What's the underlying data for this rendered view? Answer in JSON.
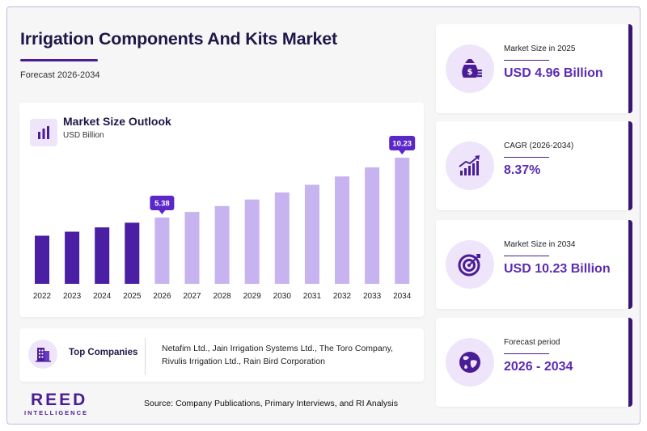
{
  "header": {
    "title": "Irrigation Components And Kits Market",
    "subtitle": "Forecast 2026-2034"
  },
  "chart_card": {
    "title": "Market Size Outlook",
    "unit": "USD Billion",
    "icon": "bar-chart-icon"
  },
  "chart_data": {
    "type": "bar",
    "title": "Market Size Outlook",
    "ylabel": "USD Billion",
    "categories": [
      "2022",
      "2023",
      "2024",
      "2025",
      "2026",
      "2027",
      "2028",
      "2029",
      "2030",
      "2031",
      "2032",
      "2033",
      "2034"
    ],
    "values": [
      3.9,
      4.23,
      4.58,
      4.96,
      5.38,
      5.83,
      6.31,
      6.84,
      7.41,
      8.03,
      8.71,
      9.44,
      10.23
    ],
    "data_labels": [
      {
        "category": "2026",
        "text": "5.38"
      },
      {
        "category": "2034",
        "text": "10.23"
      }
    ],
    "colors": {
      "historical": "#4a1fa3",
      "forecast": "#c7b3f0",
      "label_bg": "#5a27c9"
    },
    "ylim": [
      0,
      10.23
    ],
    "grid": false
  },
  "companies": {
    "label": "Top Companies",
    "list": "Netafim Ltd., Jain Irrigation Systems Ltd., The Toro Company, Rivulis Irrigation Ltd., Rain Bird Corporation",
    "icon": "building-icon"
  },
  "logo": {
    "main": "REED",
    "sub": "INTELLIGENCE"
  },
  "source": "Source: Company Publications, Primary Interviews, and RI Analysis",
  "stats": [
    {
      "label": "Market Size in 2025",
      "value": "USD 4.96 Billion",
      "icon": "money-bag-icon"
    },
    {
      "label": "CAGR (2026-2034)",
      "value": "8.37%",
      "icon": "growth-chart-icon"
    },
    {
      "label": "Market Size in 2034",
      "value": "USD 10.23 Billion",
      "icon": "target-icon"
    },
    {
      "label": "Forecast period",
      "value": "2026 - 2034",
      "icon": "globe-icon"
    }
  ]
}
